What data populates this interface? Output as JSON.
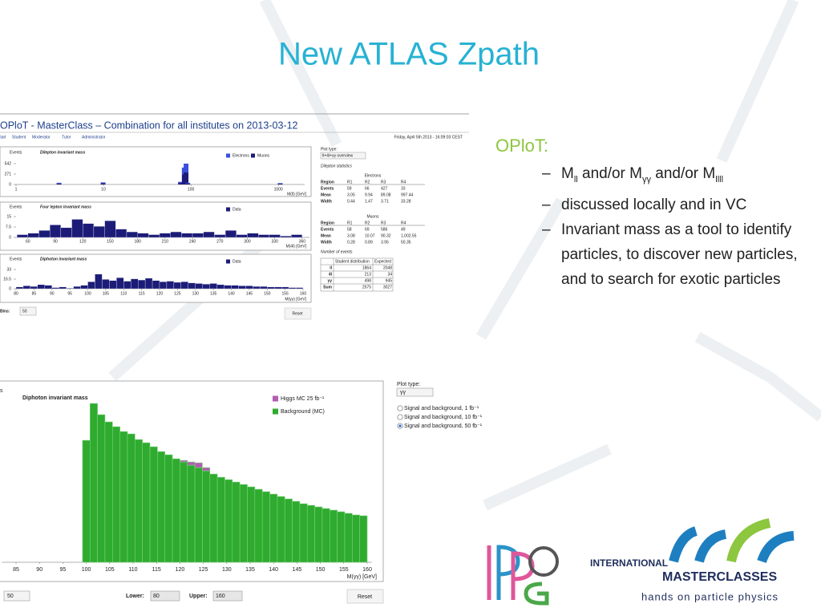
{
  "slide": {
    "title": "New ATLAS Zpath",
    "heading": "OPloT:",
    "bullet_parts": [
      "M",
      "ll",
      " and/or M",
      "γγ",
      " and/or M",
      "llll"
    ],
    "bullets": [
      "discussed locally and in VC",
      "Invariant mass as a tool to identify particles, to discover new particles, and to search for exotic particles"
    ]
  },
  "top_screenshot": {
    "header": "OPloT - MasterClass – Combination for all institutes on 2013-03-12",
    "nav": [
      "Start",
      "Student",
      "Moderator",
      "Tutor",
      "Administrator"
    ],
    "date": "Friday, April 5th 2013 - 16:09:03 CEST",
    "bins_label": "Bins:",
    "bins_value": "50",
    "reset": "Reset",
    "plot_type_label": "Plot type:",
    "plot_type_value": "ll+4l+γγ overview",
    "stats_title": "Dilepton statistics",
    "electrons_table": {
      "caption": "Electrons",
      "header": [
        "Region",
        "R1",
        "R2",
        "R3",
        "R4"
      ],
      "rows": [
        [
          "Events",
          "59",
          "66",
          "427",
          "33"
        ],
        [
          "Mean",
          "3.05",
          "9.94",
          "89.08",
          "997.44"
        ],
        [
          "Width",
          "0.44",
          "1.47",
          "3.71",
          "33.28"
        ]
      ]
    },
    "muons_table": {
      "caption": "Muons",
      "header": [
        "Region",
        "R1",
        "R2",
        "R3",
        "R4"
      ],
      "rows": [
        [
          "Events",
          "58",
          "69",
          "586",
          "49"
        ],
        [
          "Mean",
          "3.08",
          "10.07",
          "90.32",
          "1,002.55"
        ],
        [
          "Width",
          "0.28",
          "0.89",
          "3.95",
          "50.35"
        ]
      ]
    },
    "events_title": "Number of events",
    "events_table": {
      "header": [
        "Student distribution",
        "Expected"
      ],
      "rows": [
        [
          "ll",
          "1864",
          "2048"
        ],
        [
          "4l",
          "213",
          "34"
        ],
        [
          "γγ",
          "498",
          "945"
        ],
        [
          "Sum",
          "2575",
          "3027"
        ]
      ]
    },
    "charts": [
      {
        "type": "bar",
        "y_label": "Events",
        "title": "Dilepton invariant mass",
        "xlabel": "M(ll) [GeV]",
        "xlog": true,
        "xlim": [
          1,
          2000
        ],
        "xticks": [
          1,
          10,
          100,
          1000
        ],
        "ylim": [
          0,
          542
        ],
        "yticks": [
          0,
          271,
          542
        ],
        "x": [
          3.1,
          9.9,
          76,
          84,
          88,
          92,
          1050
        ],
        "series": [
          {
            "name": "Electrons",
            "color": "#3c4fdc",
            "values": [
              20,
              25,
              30,
              180,
              230,
              20,
              15
            ]
          },
          {
            "name": "Muons",
            "color": "#1c1c78",
            "values": [
              25,
              30,
              40,
              260,
              312,
              25,
              20
            ]
          }
        ]
      },
      {
        "type": "histogram",
        "y_label": "Events",
        "title": "Four lepton invariant mass",
        "xlabel": "M(4l) [GeV]",
        "xlim": [
          47,
          368
        ],
        "xticks": [
          60,
          90,
          120,
          150,
          180,
          210,
          240,
          270,
          300,
          330,
          360
        ],
        "ylim": [
          0,
          15
        ],
        "yticks": [
          0,
          7.5,
          15
        ],
        "bins": [
          48,
          60,
          72,
          84,
          96,
          108,
          120,
          132,
          144,
          156,
          168,
          180,
          192,
          204,
          216,
          228,
          240,
          252,
          264,
          276,
          288,
          300,
          312,
          324,
          336,
          348,
          360
        ],
        "series": [
          {
            "name": "Data",
            "color": "#1c1c78",
            "values": [
              2,
              3,
              5,
              9,
              7,
              13,
              10,
              8,
              12,
              6,
              4,
              3,
              2,
              3,
              4,
              3,
              3,
              4,
              2,
              5,
              2,
              3,
              2,
              2,
              1,
              2
            ]
          }
        ]
      },
      {
        "type": "histogram",
        "y_label": "Events",
        "title": "Diphoton invariant mass",
        "xlabel": "M(γγ) [GeV]",
        "xlim": [
          80,
          160
        ],
        "xticks": [
          80,
          85,
          90,
          95,
          100,
          105,
          110,
          115,
          120,
          125,
          130,
          135,
          140,
          145,
          150,
          155,
          160
        ],
        "ylim": [
          0,
          33
        ],
        "yticks": [
          0,
          16.5,
          33
        ],
        "bins": [
          80,
          82,
          84,
          86,
          88,
          90,
          92,
          94,
          96,
          98,
          100,
          102,
          104,
          106,
          108,
          110,
          112,
          114,
          116,
          118,
          120,
          122,
          124,
          126,
          128,
          130,
          132,
          134,
          136,
          138,
          140,
          142,
          144,
          146,
          148,
          150,
          152,
          154,
          156,
          158,
          160
        ],
        "series": [
          {
            "name": "Data",
            "color": "#1c1c78",
            "values": [
              3,
              5,
              4,
              7,
              6,
              2,
              3,
              1,
              4,
              6,
              12,
              25,
              16,
              14,
              19,
              13,
              17,
              15,
              18,
              14,
              12,
              13,
              11,
              12,
              10,
              9,
              8,
              9,
              7,
              6,
              6,
              5,
              5,
              4,
              4,
              3,
              3,
              3,
              2,
              2
            ]
          }
        ]
      }
    ]
  },
  "bottom_screenshot": {
    "chart": {
      "type": "histogram",
      "y_label": "s",
      "title": "Diphoton invariant mass",
      "xlabel": "M(γγ) [GeV]",
      "xlim": [
        82,
        161
      ],
      "xticks": [
        85,
        90,
        95,
        100,
        105,
        110,
        115,
        120,
        125,
        130,
        135,
        140,
        145,
        150,
        155,
        160
      ],
      "ylim": [
        0,
        220
      ],
      "bins": [
        99.2,
        100.8,
        102.4,
        104,
        105.6,
        107.2,
        108.8,
        110.4,
        112,
        113.6,
        115.2,
        116.8,
        118.4,
        120,
        121.6,
        123.2,
        124.8,
        126.4,
        128,
        129.6,
        131.2,
        132.8,
        134.4,
        136,
        137.6,
        139.2,
        140.8,
        142.4,
        144,
        145.6,
        147.2,
        148.8,
        150.4,
        152,
        153.6,
        155.2,
        156.8,
        158.4,
        160
      ],
      "series": [
        {
          "name": "Higgs MC 25 fb⁻¹",
          "color": "#b25cb2",
          "values": [
            0,
            0,
            0,
            0,
            0,
            0,
            0,
            0,
            0,
            0,
            0,
            0,
            0,
            2,
            4,
            6,
            4,
            0,
            0,
            0,
            0,
            0,
            0,
            0,
            0,
            0,
            0,
            0,
            0,
            0,
            0,
            0,
            0,
            0,
            0,
            0,
            0,
            0
          ]
        },
        {
          "name": "Background (MC)",
          "color": "#2fab2f",
          "values": [
            152,
            198,
            184,
            175,
            169,
            163,
            160,
            153,
            149,
            144,
            138,
            134,
            129,
            125,
            121,
            118,
            114,
            110,
            106,
            103,
            100,
            97,
            94,
            91,
            88,
            85,
            82,
            79,
            76,
            73,
            71,
            69,
            67,
            65,
            63,
            61,
            59,
            58
          ]
        }
      ]
    },
    "bins_value": "50",
    "lower_label": "Lower:",
    "lower_value": "80",
    "upper_label": "Upper:",
    "upper_value": "160",
    "reset": "Reset",
    "plot_type_label": "Plot type:",
    "plot_type_value": "γγ",
    "options": [
      "Signal and background, 1 fb⁻¹",
      "Signal and background, 10 fb⁻¹",
      "Signal and background, 50 fb⁻¹"
    ]
  },
  "logos": {
    "international": "INTERNATIONAL",
    "masterclasses": "MASTERCLASSES",
    "tagline": "hands on particle physics"
  }
}
